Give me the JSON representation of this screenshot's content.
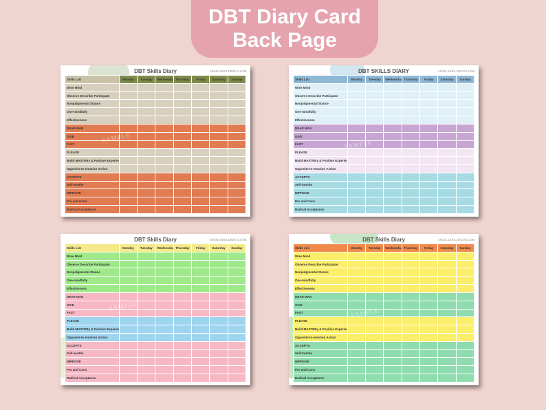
{
  "banner": {
    "line1": "DBT Diary Card",
    "line2": "Back Page"
  },
  "cards": [
    {
      "title": "DBT Skills Diary",
      "site": "ANGELAJOOL.DIGITAL.COM",
      "days": [
        "Monday",
        "Tuesday",
        "Wednesday",
        "Thursday",
        "Friday",
        "Saturday",
        "Sunday"
      ],
      "header_color": "#7f8b4a",
      "rows": [
        {
          "label": "Skills List",
          "color": "#c9c2a8",
          "header": true
        },
        {
          "label": "Wise Mind",
          "color": "#d8d0bf"
        },
        {
          "label": "Observe    Describe    Participate",
          "color": "#d8d0bf"
        },
        {
          "label": "Nonjudgmental Stance",
          "color": "#d8d0bf"
        },
        {
          "label": "One-mindfully",
          "color": "#d8d0bf"
        },
        {
          "label": "Effectiveness",
          "color": "#d8d0bf"
        },
        {
          "label": "DEAR MAN",
          "color": "#e07b52"
        },
        {
          "label": "GIVE",
          "color": "#e07b52"
        },
        {
          "label": "FAST",
          "color": "#e07b52"
        },
        {
          "label": "PLEASE",
          "color": "#d8d0bf"
        },
        {
          "label": "Build MASTERy & Positive Experiences",
          "color": "#d8d0bf"
        },
        {
          "label": "Opposite-to-emotion Action",
          "color": "#d8d0bf"
        },
        {
          "label": "ACCEPTS",
          "color": "#e07b52"
        },
        {
          "label": "Self-soothe",
          "color": "#e07b52"
        },
        {
          "label": "IMPROVE",
          "color": "#e07b52"
        },
        {
          "label": "Pro and Cons",
          "color": "#e07b52"
        },
        {
          "label": "Radical Acceptance",
          "color": "#e07b52"
        }
      ]
    },
    {
      "title": "DBT SKILLS DIARY",
      "site": "ANGELAJOOL.DIGITAL.COM",
      "days": [
        "Monday",
        "Tuesday",
        "Wednesday",
        "Thursday",
        "Friday",
        "Saturday",
        "Sunday"
      ],
      "header_color": "#8fb8d6",
      "rows": [
        {
          "label": "Skills List",
          "color": "#8fb8d6",
          "header": true
        },
        {
          "label": "Wise Mind",
          "color": "#dff1f7"
        },
        {
          "label": "Observe    Describe    Participate",
          "color": "#dff1f7"
        },
        {
          "label": "Nonjudgmental Stance",
          "color": "#dff1f7"
        },
        {
          "label": "One-mindfully",
          "color": "#dff1f7"
        },
        {
          "label": "Effectiveness",
          "color": "#dff1f7"
        },
        {
          "label": "DEAR MAN",
          "color": "#c7a6d3"
        },
        {
          "label": "GIVE",
          "color": "#c7a6d3"
        },
        {
          "label": "FAST",
          "color": "#c7a6d3"
        },
        {
          "label": "PLEASE",
          "color": "#f3e6f4"
        },
        {
          "label": "Build MASTERy & Positive Experiences",
          "color": "#f3e6f4"
        },
        {
          "label": "Opposite-to-emotion Action",
          "color": "#f3e6f4"
        },
        {
          "label": "ACCEPTS",
          "color": "#a6dbe4"
        },
        {
          "label": "Self-Soothe",
          "color": "#a6dbe4"
        },
        {
          "label": "IMPROVE",
          "color": "#a6dbe4"
        },
        {
          "label": "Pro and Cons",
          "color": "#a6dbe4"
        },
        {
          "label": "Radical Acceptance",
          "color": "#a6dbe4"
        }
      ]
    },
    {
      "title": "DBT Skills Diary",
      "site": "ANGELAJOOL.DIGITAL.COM",
      "days": [
        "Monday",
        "Tuesday",
        "Wednesday",
        "Thursday",
        "Friday",
        "Saturday",
        "Sunday"
      ],
      "header_color": "#f5e98a",
      "rows": [
        {
          "label": "Skills List",
          "color": "#f5e98a",
          "header": true
        },
        {
          "label": "Wise Mind",
          "color": "#9fe98a"
        },
        {
          "label": "Observe    Describe    Participate",
          "color": "#9fe98a"
        },
        {
          "label": "Nonjudgmental Stance",
          "color": "#9fe98a"
        },
        {
          "label": "One-mindfully",
          "color": "#9fe98a"
        },
        {
          "label": "Effectiveness",
          "color": "#9fe98a"
        },
        {
          "label": "DEAR MAN",
          "color": "#f7b8c6"
        },
        {
          "label": "GIVE",
          "color": "#f7b8c6"
        },
        {
          "label": "FAST",
          "color": "#f7b8c6"
        },
        {
          "label": "PLEASE",
          "color": "#9fd4ee"
        },
        {
          "label": "Build MASTERy & Positive Experiences",
          "color": "#9fd4ee"
        },
        {
          "label": "Opposite-to-emotion Action",
          "color": "#9fd4ee"
        },
        {
          "label": "ACCEPTS",
          "color": "#f7b8c6"
        },
        {
          "label": "Self-soothe",
          "color": "#f7b8c6"
        },
        {
          "label": "IMPROVE",
          "color": "#f7b8c6"
        },
        {
          "label": "Pro and Cons",
          "color": "#f7b8c6"
        },
        {
          "label": "Radical Acceptance",
          "color": "#f7b8c6"
        }
      ]
    },
    {
      "title": "DBT Skills Diary",
      "site": "ANGELAJOOL.DIGITAL.COM",
      "days": [
        "Monday",
        "Tuesday",
        "Wednesday",
        "Thursday",
        "Friday",
        "Saturday",
        "Sunday"
      ],
      "header_color": "#f08a4b",
      "rows": [
        {
          "label": "Skills List",
          "color": "#f08a4b",
          "header": true
        },
        {
          "label": "Wise Mind",
          "color": "#fbee6a"
        },
        {
          "label": "Observe    Describe    Participate",
          "color": "#fbee6a"
        },
        {
          "label": "Nonjudgmental Stance",
          "color": "#fbee6a"
        },
        {
          "label": "One-mindfully",
          "color": "#fbee6a"
        },
        {
          "label": "Effectiveness",
          "color": "#fbee6a"
        },
        {
          "label": "DEAR MAN",
          "color": "#8fdcae"
        },
        {
          "label": "GIVE",
          "color": "#8fdcae"
        },
        {
          "label": "FAST",
          "color": "#8fdcae"
        },
        {
          "label": "PLEASE",
          "color": "#fbee6a"
        },
        {
          "label": "Build MASTERy & Positive Experiences",
          "color": "#fbee6a"
        },
        {
          "label": "Opposite-to-emotion Action",
          "color": "#fbee6a"
        },
        {
          "label": "ACCEPTS",
          "color": "#8fdcae"
        },
        {
          "label": "Self-Soothe",
          "color": "#8fdcae"
        },
        {
          "label": "IMPROVE",
          "color": "#8fdcae"
        },
        {
          "label": "Pro and Cons",
          "color": "#8fdcae"
        },
        {
          "label": "Radical Acceptance",
          "color": "#8fdcae"
        }
      ]
    }
  ]
}
